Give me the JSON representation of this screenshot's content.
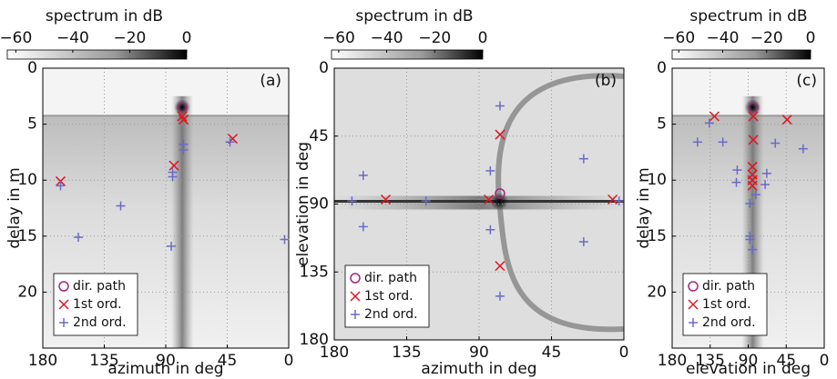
{
  "chart_data": [
    {
      "type": "scatter",
      "panel_label": "(a)",
      "xlabel": "azimuth in deg",
      "ylabel": "delay in m",
      "xlim": [
        180,
        0
      ],
      "xticks": [
        180,
        135,
        90,
        45,
        0
      ],
      "ylim": [
        0,
        25
      ],
      "yticks": [
        0,
        5,
        10,
        15,
        20
      ],
      "y_inverted": true,
      "grid": true,
      "legend": "lower left",
      "colorbar": {
        "label": "spectrum in dB",
        "lim": [
          -63,
          0
        ],
        "ticks": [
          {
            "value": -60,
            "label": "−60"
          },
          {
            "value": -40,
            "label": "−40"
          },
          {
            "value": -20,
            "label": "−20"
          },
          0
        ]
      },
      "series": [
        {
          "name": "dir. path",
          "color": "#a0287a",
          "marker": "circle",
          "x": [
            78
          ],
          "values": [
            3.5
          ]
        },
        {
          "name": "1st ord.",
          "color": "#e0161e",
          "marker": "x",
          "x": [
            78,
            77,
            84,
            167,
            41
          ],
          "values": [
            4.3,
            4.6,
            8.7,
            10.1,
            6.3
          ]
        },
        {
          "name": "2nd ord.",
          "color": "#6a6ac8",
          "marker": "plus",
          "x": [
            77,
            77,
            85,
            85,
            167,
            123,
            154,
            86,
            3,
            43
          ],
          "values": [
            6.8,
            7.3,
            9.3,
            9.7,
            10.5,
            12.3,
            15.1,
            15.9,
            15.3,
            6.6
          ]
        }
      ]
    },
    {
      "type": "scatter",
      "panel_label": "(b)",
      "xlabel": "azimuth in deg",
      "ylabel": "elevation in deg",
      "xlim": [
        180,
        0
      ],
      "xticks": [
        180,
        135,
        90,
        45,
        0
      ],
      "ylim": [
        0,
        180
      ],
      "yticks": [
        0,
        45,
        90,
        135,
        180
      ],
      "y_inverted": true,
      "grid": true,
      "legend": "lower left",
      "colorbar": {
        "label": "spectrum in dB",
        "lim": [
          -63,
          0
        ],
        "ticks": [
          {
            "value": -60,
            "label": "−60"
          },
          {
            "value": -40,
            "label": "−40"
          },
          {
            "value": -20,
            "label": "−20"
          },
          0
        ]
      },
      "series": [
        {
          "name": "dir. path",
          "color": "#a0287a",
          "marker": "circle",
          "x": [
            77
          ],
          "values": [
            83
          ]
        },
        {
          "name": "1st ord.",
          "color": "#e0161e",
          "marker": "x",
          "x": [
            77,
            84,
            7,
            148,
            77
          ],
          "values": [
            44,
            87,
            87,
            87,
            131
          ]
        },
        {
          "name": "2nd ord.",
          "color": "#6a6ac8",
          "marker": "plus",
          "x": [
            77,
            162,
            162,
            169,
            123,
            83,
            83,
            25,
            25,
            3,
            77
          ],
          "values": [
            25,
            71,
            105,
            88,
            88,
            68,
            107,
            60,
            115,
            88,
            151
          ]
        }
      ]
    },
    {
      "type": "scatter",
      "panel_label": "(c)",
      "xlabel": "elevation in deg",
      "ylabel": "delay in m",
      "xlim": [
        180,
        0
      ],
      "xticks": [
        180,
        135,
        90,
        45,
        0
      ],
      "ylim": [
        0,
        25
      ],
      "yticks": [
        0,
        5,
        10,
        15,
        20
      ],
      "y_inverted": true,
      "grid": true,
      "legend": "lower left",
      "colorbar": {
        "label": "spectrum in dB",
        "lim": [
          -63,
          0
        ],
        "ticks": [
          {
            "value": -60,
            "label": "−60"
          },
          {
            "value": -40,
            "label": "−40"
          },
          {
            "value": -20,
            "label": "−20"
          },
          0
        ]
      },
      "series": [
        {
          "name": "dir. path",
          "color": "#a0287a",
          "marker": "circle",
          "x": [
            84
          ],
          "values": [
            3.5
          ]
        },
        {
          "name": "1st ord.",
          "color": "#e0161e",
          "marker": "x",
          "x": [
            84,
            130,
            44,
            84,
            85,
            85,
            85,
            85
          ],
          "values": [
            4.3,
            4.3,
            4.6,
            6.4,
            8.8,
            9.5,
            10,
            10.5
          ]
        },
        {
          "name": "2nd ord.",
          "color": "#6a6ac8",
          "marker": "plus",
          "x": [
            136,
            150,
            120,
            58,
            25,
            103,
            104,
            68,
            70,
            81,
            88,
            88,
            88,
            85
          ],
          "values": [
            4.9,
            6.6,
            6.6,
            6.7,
            7.2,
            9.1,
            10.2,
            9.4,
            10.4,
            11.3,
            12.1,
            15,
            15.3,
            16.2
          ]
        }
      ]
    }
  ]
}
